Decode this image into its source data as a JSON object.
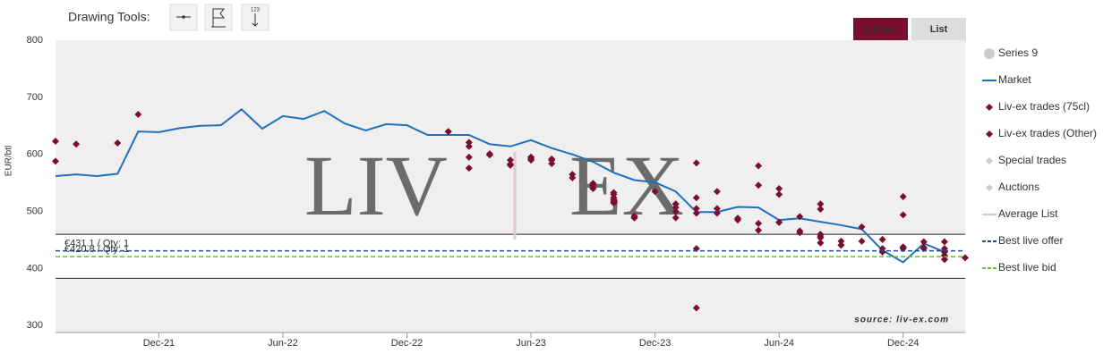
{
  "toolbar": {
    "label": "Drawing Tools:",
    "icon_text": "123"
  },
  "buttons": [
    {
      "label": "Liv-ex",
      "active": true
    },
    {
      "label": "List",
      "active": false
    }
  ],
  "chart_data": {
    "type": "line",
    "y_label": "EUR/btl",
    "ylim": [
      288,
      800
    ],
    "yticks": [
      300,
      400,
      500,
      600,
      700,
      800
    ],
    "xlim": [
      "2021-07",
      "2025-03"
    ],
    "xticks": [
      {
        "value": "2021-12",
        "label": "Dec-21"
      },
      {
        "value": "2022-06",
        "label": "Jun-22"
      },
      {
        "value": "2022-12",
        "label": "Dec-22"
      },
      {
        "value": "2023-06",
        "label": "Jun-23"
      },
      {
        "value": "2023-12",
        "label": "Dec-23"
      },
      {
        "value": "2024-06",
        "label": "Jun-24"
      },
      {
        "value": "2024-12",
        "label": "Dec-24"
      }
    ],
    "watermark": {
      "left": "LIV",
      "right": "EX"
    },
    "credit": "source: liv-ex.com",
    "band": [
      383,
      460
    ],
    "series": [
      {
        "name": "Series 9",
        "kind": "circle",
        "color": "#cccccc",
        "visible": false
      },
      {
        "name": "Market",
        "kind": "line",
        "color": "#1f6fbf",
        "visible": true,
        "x": [
          "2021-07",
          "2021-08",
          "2021-09",
          "2021-10",
          "2021-11",
          "2021-12",
          "2022-01",
          "2022-02",
          "2022-03",
          "2022-04",
          "2022-05",
          "2022-06",
          "2022-07",
          "2022-08",
          "2022-09",
          "2022-10",
          "2022-11",
          "2022-12",
          "2023-01",
          "2023-02",
          "2023-03",
          "2023-04",
          "2023-05",
          "2023-06",
          "2023-07",
          "2023-08",
          "2023-09",
          "2023-10",
          "2023-11",
          "2023-12",
          "2024-01",
          "2024-02",
          "2024-03",
          "2024-04",
          "2024-05",
          "2024-06",
          "2024-07",
          "2024-08",
          "2024-09",
          "2024-10",
          "2024-11",
          "2024-12",
          "2025-01",
          "2025-02"
        ],
        "values": [
          562,
          565,
          562,
          566,
          640,
          639,
          646,
          650,
          651,
          679,
          645,
          667,
          662,
          676,
          654,
          642,
          653,
          651,
          634,
          634,
          634,
          618,
          614,
          625,
          611,
          600,
          587,
          568,
          555,
          551,
          535,
          499,
          499,
          508,
          507,
          485,
          488,
          482,
          476,
          469,
          432,
          411,
          444,
          429
        ]
      },
      {
        "name": "Liv-ex trades (75cl)",
        "kind": "diamond",
        "color": "#7a0f2d",
        "visible": true,
        "x": [
          "2021-07",
          "2021-07",
          "2021-08",
          "2021-10",
          "2021-11",
          "2023-02",
          "2023-02",
          "2023-03",
          "2023-03",
          "2023-03",
          "2023-03",
          "2023-04",
          "2023-04",
          "2023-05",
          "2023-05",
          "2023-05",
          "2023-06",
          "2023-06",
          "2023-06",
          "2023-06",
          "2023-07",
          "2023-07",
          "2023-07",
          "2023-08",
          "2023-08",
          "2023-09",
          "2023-09",
          "2023-09",
          "2023-09",
          "2023-09",
          "2023-10",
          "2023-10",
          "2023-10",
          "2023-10",
          "2023-10",
          "2023-10",
          "2023-10",
          "2023-11",
          "2023-11",
          "2023-11",
          "2023-11",
          "2023-12",
          "2024-01",
          "2024-01",
          "2024-01",
          "2024-01",
          "2024-01",
          "2024-02",
          "2024-02",
          "2024-02",
          "2024-02",
          "2024-02",
          "2024-02",
          "2024-03",
          "2024-03",
          "2024-03",
          "2024-04",
          "2024-04",
          "2024-04",
          "2024-05",
          "2024-05",
          "2024-05",
          "2024-05",
          "2024-06",
          "2024-06",
          "2024-06",
          "2024-06",
          "2024-07",
          "2024-07",
          "2024-07",
          "2024-08",
          "2024-08",
          "2024-08",
          "2024-08",
          "2024-08",
          "2024-08",
          "2024-09",
          "2024-09",
          "2024-09",
          "2024-10",
          "2024-10",
          "2024-11",
          "2024-11",
          "2024-11",
          "2024-12",
          "2024-12",
          "2024-12",
          "2024-12",
          "2024-12",
          "2025-01",
          "2025-01",
          "2025-01",
          "2025-02",
          "2025-02",
          "2025-02",
          "2025-02",
          "2025-02",
          "2025-02",
          "2025-03"
        ],
        "values": [
          588,
          623,
          618,
          620,
          670,
          640,
          640,
          621,
          595,
          576,
          614,
          601,
          599,
          581,
          583,
          590,
          590,
          592,
          595,
          595,
          592,
          590,
          584,
          565,
          559,
          542,
          549,
          546,
          540,
          549,
          524,
          533,
          515,
          530,
          521,
          515,
          518,
          489,
          489,
          489,
          492,
          535,
          513,
          507,
          500,
          489,
          513,
          524,
          585,
          497,
          505,
          435,
          331,
          505,
          535,
          497,
          488,
          488,
          485,
          467,
          479,
          580,
          546,
          540,
          481,
          481,
          530,
          491,
          466,
          463,
          460,
          457,
          504,
          445,
          454,
          513,
          448,
          441,
          441,
          473,
          448,
          451,
          435,
          429,
          438,
          435,
          437,
          526,
          494,
          447,
          437,
          435,
          447,
          435,
          429,
          423,
          416,
          416,
          419
        ]
      },
      {
        "name": "Liv-ex trades (Other)",
        "kind": "diamond",
        "color": "#7a0f2d",
        "visible": true,
        "x": [],
        "values": []
      },
      {
        "name": "Special trades",
        "kind": "diamond",
        "color": "#cccccc",
        "visible": false
      },
      {
        "name": "Auctions",
        "kind": "diamond",
        "color": "#cccccc",
        "visible": false
      },
      {
        "name": "Average List",
        "kind": "line",
        "color": "#cccccc",
        "visible": false
      },
      {
        "name": "Best live offer",
        "kind": "dash",
        "color": "#1a4e9c",
        "visible": true,
        "value": 431.1,
        "label": "€431.1 / Qty: 1",
        "label_color": "#1f6fbf"
      },
      {
        "name": "Best live bid",
        "kind": "dash",
        "color": "#66bb33",
        "visible": true,
        "value": 420.8,
        "label": "€420.8 / Qty: 1",
        "label_color": "#66bb33"
      }
    ]
  }
}
